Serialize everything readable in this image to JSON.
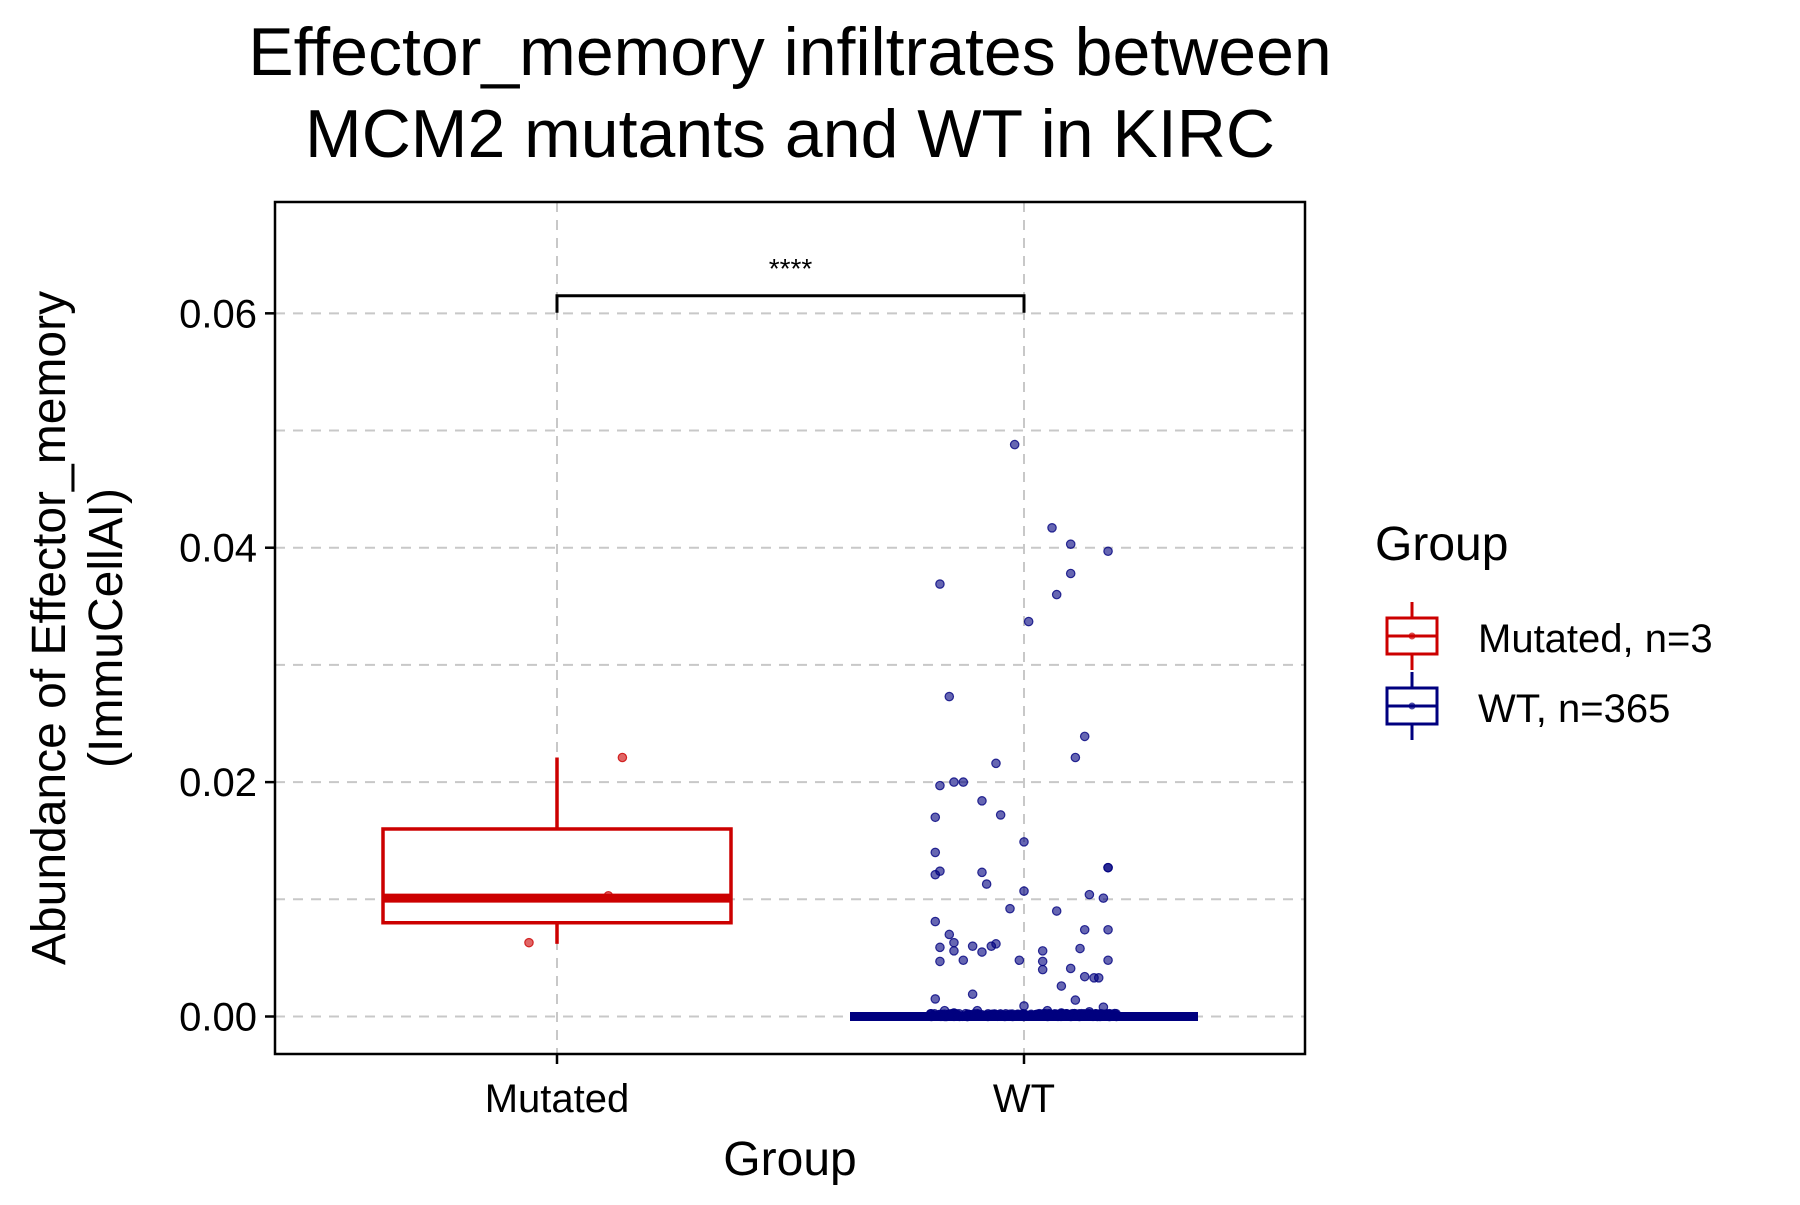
{
  "chart_data": {
    "type": "box",
    "title_lines": [
      "Effector_memory infiltrates between",
      "MCM2 mutants and WT in KIRC"
    ],
    "xlabel": "Group",
    "ylabel_lines": [
      "Abundance of Effector_memory",
      "(ImmuCellAI)"
    ],
    "categories": [
      "Mutated",
      "WT"
    ],
    "ylim": [
      -0.0032,
      0.0695
    ],
    "y_ticks": [
      0.0,
      0.02,
      0.04,
      0.06
    ],
    "y_tick_labels": [
      "0.00",
      "0.02",
      "0.04",
      "0.06"
    ],
    "grid": true,
    "legend": {
      "title": "Group",
      "position": "right",
      "entries": [
        "Mutated, n=3",
        "WT, n=365"
      ]
    },
    "colors": {
      "Mutated": "#cc0000",
      "WT": "#00007f",
      "grid": "#c8c8c8"
    },
    "significance": {
      "label": "****",
      "between": [
        "Mutated",
        "WT"
      ],
      "y": 0.0615
    },
    "series": [
      {
        "name": "Mutated, n=3",
        "category": "Mutated",
        "box": {
          "min": 0.0062,
          "q1": 0.008,
          "median": 0.0101,
          "q3": 0.016,
          "max": 0.0221
        },
        "points": [
          {
            "dx": 0.14,
            "y": 0.0221
          },
          {
            "dx": 0.11,
            "y": 0.0103
          },
          {
            "dx": -0.06,
            "y": 0.0063
          }
        ]
      },
      {
        "name": "WT, n=365",
        "category": "WT",
        "box": {
          "min": 0.0,
          "q1": 0.0,
          "median": 0.0,
          "q3": 0.0,
          "max": 0.0
        },
        "points": [
          {
            "dx": -0.02,
            "y": 0.0488
          },
          {
            "dx": 0.06,
            "y": 0.0417
          },
          {
            "dx": 0.1,
            "y": 0.0403
          },
          {
            "dx": 0.18,
            "y": 0.0397
          },
          {
            "dx": 0.1,
            "y": 0.0378
          },
          {
            "dx": -0.18,
            "y": 0.0369
          },
          {
            "dx": 0.07,
            "y": 0.036
          },
          {
            "dx": 0.01,
            "y": 0.0337
          },
          {
            "dx": -0.16,
            "y": 0.0273
          },
          {
            "dx": 0.13,
            "y": 0.0239
          },
          {
            "dx": 0.11,
            "y": 0.0221
          },
          {
            "dx": -0.06,
            "y": 0.0216
          },
          {
            "dx": -0.13,
            "y": 0.02
          },
          {
            "dx": -0.15,
            "y": 0.02
          },
          {
            "dx": -0.18,
            "y": 0.0197
          },
          {
            "dx": -0.09,
            "y": 0.0184
          },
          {
            "dx": -0.05,
            "y": 0.0172
          },
          {
            "dx": -0.19,
            "y": 0.017
          },
          {
            "dx": 0.0,
            "y": 0.0149
          },
          {
            "dx": -0.19,
            "y": 0.014
          },
          {
            "dx": 0.18,
            "y": 0.0127
          },
          {
            "dx": 0.18,
            "y": 0.0127
          },
          {
            "dx": -0.18,
            "y": 0.0124
          },
          {
            "dx": -0.09,
            "y": 0.0123
          },
          {
            "dx": -0.19,
            "y": 0.0121
          },
          {
            "dx": -0.08,
            "y": 0.0113
          },
          {
            "dx": 0.0,
            "y": 0.0107
          },
          {
            "dx": 0.14,
            "y": 0.0104
          },
          {
            "dx": 0.17,
            "y": 0.0101
          },
          {
            "dx": -0.03,
            "y": 0.0092
          },
          {
            "dx": 0.07,
            "y": 0.009
          },
          {
            "dx": -0.19,
            "y": 0.0081
          },
          {
            "dx": 0.18,
            "y": 0.0074
          },
          {
            "dx": 0.13,
            "y": 0.0074
          },
          {
            "dx": -0.16,
            "y": 0.007
          },
          {
            "dx": -0.15,
            "y": 0.0063
          },
          {
            "dx": -0.06,
            "y": 0.0062
          },
          {
            "dx": -0.07,
            "y": 0.006
          },
          {
            "dx": -0.11,
            "y": 0.006
          },
          {
            "dx": -0.18,
            "y": 0.0059
          },
          {
            "dx": -0.15,
            "y": 0.0056
          },
          {
            "dx": -0.09,
            "y": 0.0055
          },
          {
            "dx": 0.04,
            "y": 0.0056
          },
          {
            "dx": 0.12,
            "y": 0.0058
          },
          {
            "dx": -0.13,
            "y": 0.0048
          },
          {
            "dx": -0.18,
            "y": 0.0047
          },
          {
            "dx": -0.01,
            "y": 0.0048
          },
          {
            "dx": 0.04,
            "y": 0.0047
          },
          {
            "dx": 0.18,
            "y": 0.0048
          },
          {
            "dx": 0.1,
            "y": 0.0041
          },
          {
            "dx": 0.04,
            "y": 0.004
          },
          {
            "dx": 0.13,
            "y": 0.0034
          },
          {
            "dx": 0.15,
            "y": 0.0033
          },
          {
            "dx": 0.16,
            "y": 0.0033
          },
          {
            "dx": 0.08,
            "y": 0.0026
          },
          {
            "dx": -0.11,
            "y": 0.0019
          },
          {
            "dx": -0.19,
            "y": 0.0015
          },
          {
            "dx": 0.11,
            "y": 0.0014
          },
          {
            "dx": 0.0,
            "y": 0.0009
          },
          {
            "dx": 0.17,
            "y": 0.0008
          },
          {
            "dx": -0.17,
            "y": 0.0005
          },
          {
            "dx": -0.1,
            "y": 0.0005
          },
          {
            "dx": 0.05,
            "y": 0.0005
          },
          {
            "dx": 0.14,
            "y": 0.0004
          },
          {
            "dx": -0.15,
            "y": 0.0003
          },
          {
            "dx": 0.08,
            "y": 0.0003
          },
          {
            "dx": -0.03,
            "y": 0.0002
          },
          {
            "dx": 0.19,
            "y": 0.0002
          },
          {
            "dx": -0.12,
            "y": 0.0002
          },
          {
            "dx": 0.11,
            "y": 0.0002
          },
          {
            "dx": -0.19,
            "y": 0.0001
          },
          {
            "dx": -0.07,
            "y": 0.0001
          },
          {
            "dx": 0.02,
            "y": 0.0001
          },
          {
            "dx": 0.16,
            "y": 0.0001
          }
        ],
        "zero_cluster": {
          "count": 291,
          "y": 0.0
        }
      }
    ]
  }
}
